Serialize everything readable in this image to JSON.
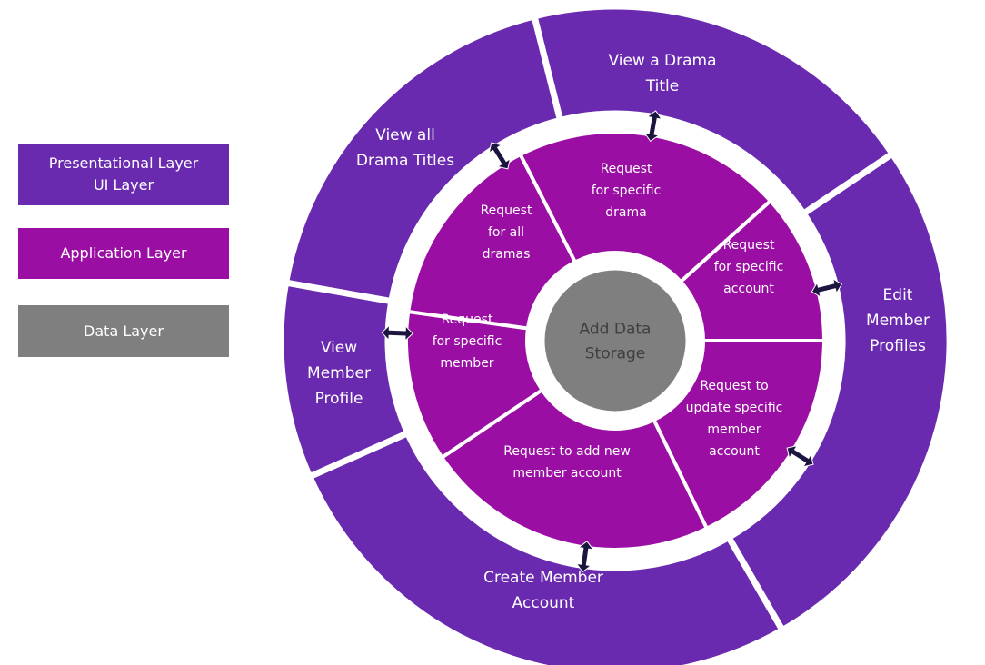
{
  "colors": {
    "presentational": "#6a2ab0",
    "application": "#9a0ea3",
    "data": "#7f7f7f",
    "arrow": "#1b1540",
    "center_text": "#3f3f3f"
  },
  "legend": {
    "presentational": "Presentational Layer\nUI Layer",
    "application": "Application Layer",
    "data": "Data Layer"
  },
  "outer_segments": [
    {
      "id": "view-a-drama-title",
      "lines": [
        "View a Drama",
        "Title"
      ]
    },
    {
      "id": "edit-member-profiles",
      "lines": [
        "Edit",
        "Member",
        "Profiles"
      ]
    },
    {
      "id": "create-member-account",
      "lines": [
        "Create Member",
        "Account"
      ]
    },
    {
      "id": "view-member-profile",
      "lines": [
        "View",
        "Member",
        "Profile"
      ]
    },
    {
      "id": "view-all-drama-titles",
      "lines": [
        "View all",
        "Drama Titles"
      ]
    }
  ],
  "inner_segments": [
    {
      "id": "request-specific-drama",
      "lines": [
        "Request",
        "for specific",
        "drama"
      ]
    },
    {
      "id": "request-specific-account",
      "lines": [
        "Request",
        "for specific",
        "account"
      ]
    },
    {
      "id": "request-update-member-account",
      "lines": [
        "Request to",
        "update specific",
        "member",
        "account"
      ]
    },
    {
      "id": "request-add-member-account",
      "lines": [
        "Request to add new",
        "member account"
      ]
    },
    {
      "id": "request-specific-member",
      "lines": [
        "Request",
        "for specific",
        "member"
      ]
    },
    {
      "id": "request-all-dramas",
      "lines": [
        "Request",
        "for all",
        "dramas"
      ]
    }
  ],
  "center": {
    "lines": [
      "Add Data",
      "Storage"
    ]
  }
}
